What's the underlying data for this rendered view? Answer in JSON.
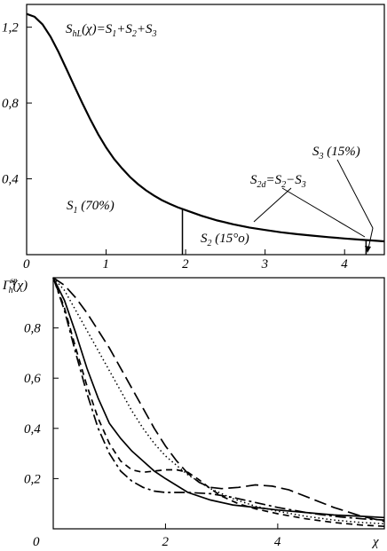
{
  "chart_data": [
    {
      "type": "line",
      "title": "",
      "xlabel": "",
      "ylabel": "",
      "xlim": [
        0,
        4.5
      ],
      "ylim": [
        0,
        1.32
      ],
      "x_ticks": [
        "0",
        "1",
        "2",
        "3",
        "4"
      ],
      "y_ticks": [
        "1,2",
        "0,8",
        "0,4"
      ],
      "grid": false,
      "series": [
        {
          "x": [
            0,
            0.1,
            0.2,
            0.3,
            0.4,
            0.5,
            0.6,
            0.7,
            0.8,
            0.9,
            1.0,
            1.1,
            1.2,
            1.3,
            1.4,
            1.5,
            1.6,
            1.7,
            1.8,
            1.9,
            2.0,
            2.2,
            2.4,
            2.6,
            2.8,
            3.0,
            3.2,
            3.4,
            3.6,
            3.8,
            4.0,
            4.2,
            4.4,
            4.5
          ],
          "values": [
            1.27,
            1.255,
            1.215,
            1.15,
            1.07,
            0.98,
            0.89,
            0.8,
            0.715,
            0.635,
            0.565,
            0.505,
            0.455,
            0.41,
            0.372,
            0.34,
            0.312,
            0.288,
            0.268,
            0.25,
            0.235,
            0.205,
            0.18,
            0.16,
            0.143,
            0.13,
            0.118,
            0.108,
            0.1,
            0.092,
            0.085,
            0.079,
            0.073,
            0.07
          ]
        }
      ],
      "vlines": [
        {
          "x": 1.96,
          "y_top": 0.24
        },
        {
          "x": 4.27,
          "y_top": 0.08
        }
      ],
      "annotations": {
        "formula": "S_hL(χ)=S_1+S_2+S_3",
        "s1": "S_1 (70%)",
        "s2": "S_2 (15°o)",
        "s2d": "S_2d=S_2−S_3",
        "s3": "S_3 (15%)"
      }
    },
    {
      "type": "line",
      "title": "",
      "xlabel": "χ",
      "ylabel": "Γ̃_h^sp(χ)",
      "xlim": [
        0,
        5.9
      ],
      "ylim": [
        0,
        1.0
      ],
      "x_ticks": [
        "0",
        "2",
        "4"
      ],
      "y_ticks": [
        "0,8",
        "0,6",
        "0,4",
        "0,2"
      ],
      "grid": false,
      "series": [
        {
          "style": "solid",
          "x": [
            0,
            0.2,
            0.4,
            0.6,
            0.8,
            1.0,
            1.2,
            1.4,
            1.6,
            1.8,
            2.0,
            2.4,
            2.8,
            3.2,
            3.6,
            4.0,
            4.5,
            5.0,
            5.5,
            5.9
          ],
          "values": [
            1.0,
            0.91,
            0.78,
            0.64,
            0.52,
            0.42,
            0.36,
            0.31,
            0.27,
            0.23,
            0.2,
            0.145,
            0.115,
            0.095,
            0.085,
            0.075,
            0.065,
            0.055,
            0.05,
            0.045
          ]
        },
        {
          "style": "dotted",
          "x": [
            0,
            0.2,
            0.4,
            0.6,
            0.8,
            1.0,
            1.2,
            1.4,
            1.6,
            1.8,
            2.0,
            2.4,
            2.8,
            3.2,
            3.6,
            4.0,
            4.5,
            5.0,
            5.5,
            5.9
          ],
          "values": [
            1.0,
            0.95,
            0.87,
            0.79,
            0.71,
            0.63,
            0.55,
            0.47,
            0.4,
            0.34,
            0.29,
            0.215,
            0.16,
            0.12,
            0.09,
            0.07,
            0.05,
            0.035,
            0.025,
            0.02
          ]
        },
        {
          "style": "long-dash",
          "x": [
            0,
            0.2,
            0.4,
            0.6,
            0.8,
            1.0,
            1.2,
            1.4,
            1.6,
            1.8,
            2.0,
            2.2,
            2.4,
            2.6,
            2.8,
            3.0,
            3.3,
            3.6,
            3.9,
            4.2,
            4.6,
            5.0,
            5.5,
            5.9
          ],
          "values": [
            1.0,
            0.97,
            0.92,
            0.86,
            0.79,
            0.72,
            0.64,
            0.56,
            0.48,
            0.4,
            0.33,
            0.27,
            0.22,
            0.185,
            0.165,
            0.16,
            0.165,
            0.175,
            0.17,
            0.155,
            0.12,
            0.085,
            0.05,
            0.03
          ]
        },
        {
          "style": "short-dash",
          "x": [
            0,
            0.2,
            0.4,
            0.6,
            0.8,
            1.0,
            1.2,
            1.4,
            1.6,
            1.8,
            2.0,
            2.2,
            2.4,
            2.6,
            2.8,
            3.0,
            3.3,
            3.6,
            4.0,
            4.5,
            5.0,
            5.5,
            5.9
          ],
          "values": [
            1.0,
            0.88,
            0.72,
            0.57,
            0.44,
            0.34,
            0.27,
            0.235,
            0.225,
            0.23,
            0.235,
            0.235,
            0.225,
            0.195,
            0.16,
            0.13,
            0.1,
            0.08,
            0.06,
            0.04,
            0.025,
            0.015,
            0.01
          ]
        },
        {
          "style": "dash-dot",
          "x": [
            0,
            0.2,
            0.4,
            0.6,
            0.8,
            1.0,
            1.2,
            1.4,
            1.6,
            1.8,
            2.0,
            2.4,
            2.8,
            3.2,
            3.6,
            4.0,
            4.5,
            5.0,
            5.5,
            5.9
          ],
          "values": [
            1.0,
            0.87,
            0.7,
            0.54,
            0.4,
            0.3,
            0.23,
            0.19,
            0.165,
            0.15,
            0.145,
            0.145,
            0.14,
            0.125,
            0.105,
            0.085,
            0.065,
            0.05,
            0.04,
            0.035
          ]
        }
      ]
    }
  ]
}
